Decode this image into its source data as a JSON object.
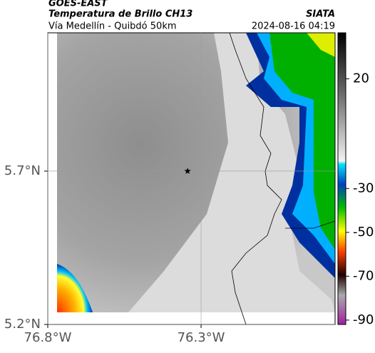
{
  "chart_data": {
    "type": "map",
    "title": "GOES-EAST",
    "subtitle": "Temperatura de Brillo CH13",
    "source": "SIATA",
    "caption": "Vía Medellín - Quibdó 50km",
    "date": "2024-08-16 04:19",
    "xlim": [
      -76.8,
      -75.863
    ],
    "ylim": [
      5.2,
      6.151
    ],
    "xticks": [
      {
        "value": -76.8,
        "label": "76.8°W"
      },
      {
        "value": -76.3,
        "label": "76.3°W"
      }
    ],
    "yticks": [
      {
        "value": 5.2,
        "label": "5.2°N"
      },
      {
        "value": 5.7,
        "label": "5.7°N"
      }
    ],
    "grid": true,
    "marker": {
      "x": -76.344,
      "y": 5.7
    },
    "colorbar": {
      "lim": [
        -92,
        41
      ],
      "ticks": [
        20,
        -30,
        -50,
        -70,
        -90
      ]
    }
  }
}
